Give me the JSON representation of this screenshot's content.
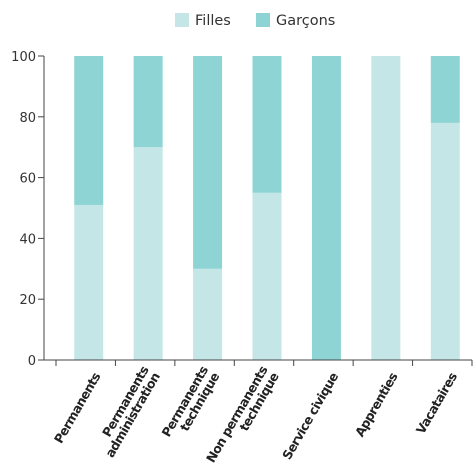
{
  "chart_data": {
    "type": "bar",
    "stacked": true,
    "title": "",
    "xlabel": "",
    "ylabel": "",
    "ylim": [
      0,
      100
    ],
    "yticks": [
      0,
      20,
      40,
      60,
      80,
      100
    ],
    "grid": false,
    "legend_position": "top-center",
    "categories": [
      [
        "Permanents"
      ],
      [
        "Permanents",
        "administration"
      ],
      [
        "Permanents",
        "technique"
      ],
      [
        "Non permanents",
        "technique"
      ],
      [
        "Service civique"
      ],
      [
        "Apprenties"
      ],
      [
        "Vacataires"
      ]
    ],
    "series": [
      {
        "name": "Filles",
        "color": "#c4e6e6",
        "values": [
          51,
          70,
          30,
          55,
          0,
          100,
          78
        ]
      },
      {
        "name": "Garçons",
        "color": "#8ed4d4",
        "values": [
          49,
          30,
          70,
          45,
          100,
          0,
          22
        ]
      }
    ]
  }
}
